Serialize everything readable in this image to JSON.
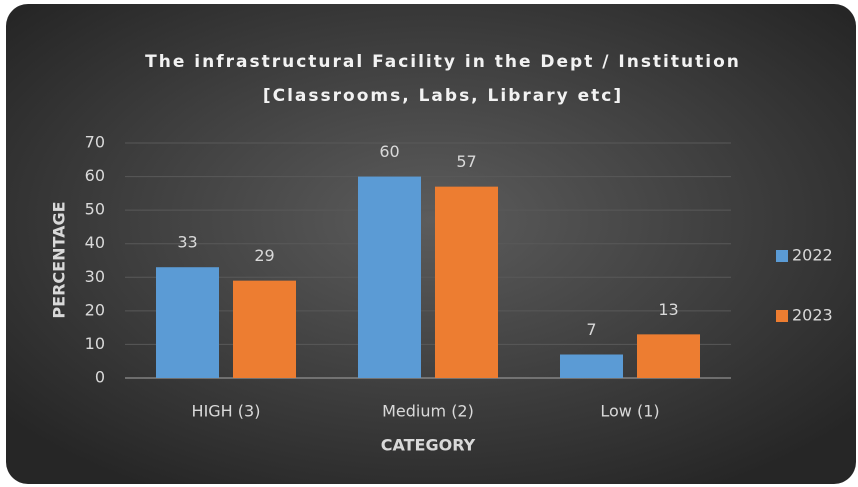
{
  "chart_data": {
    "type": "bar",
    "title": [
      "The infrastructural Facility in the Dept / Institution",
      "[Classrooms, Labs, Library etc]"
    ],
    "x_label": "CATEGORY",
    "y_label": "PERCENTAGE",
    "categories": [
      "HIGH (3)",
      "Medium (2)",
      "Low (1)"
    ],
    "series": [
      {
        "name": "2022",
        "color": "#5b9bd5",
        "values": [
          33,
          60,
          7
        ]
      },
      {
        "name": "2023",
        "color": "#ed7d31",
        "values": [
          29,
          57,
          13
        ]
      }
    ],
    "ylim": [
      0,
      70
    ],
    "yticks": [
      0,
      10,
      20,
      30,
      40,
      50,
      60,
      70
    ],
    "grid": true,
    "legend": "right"
  }
}
